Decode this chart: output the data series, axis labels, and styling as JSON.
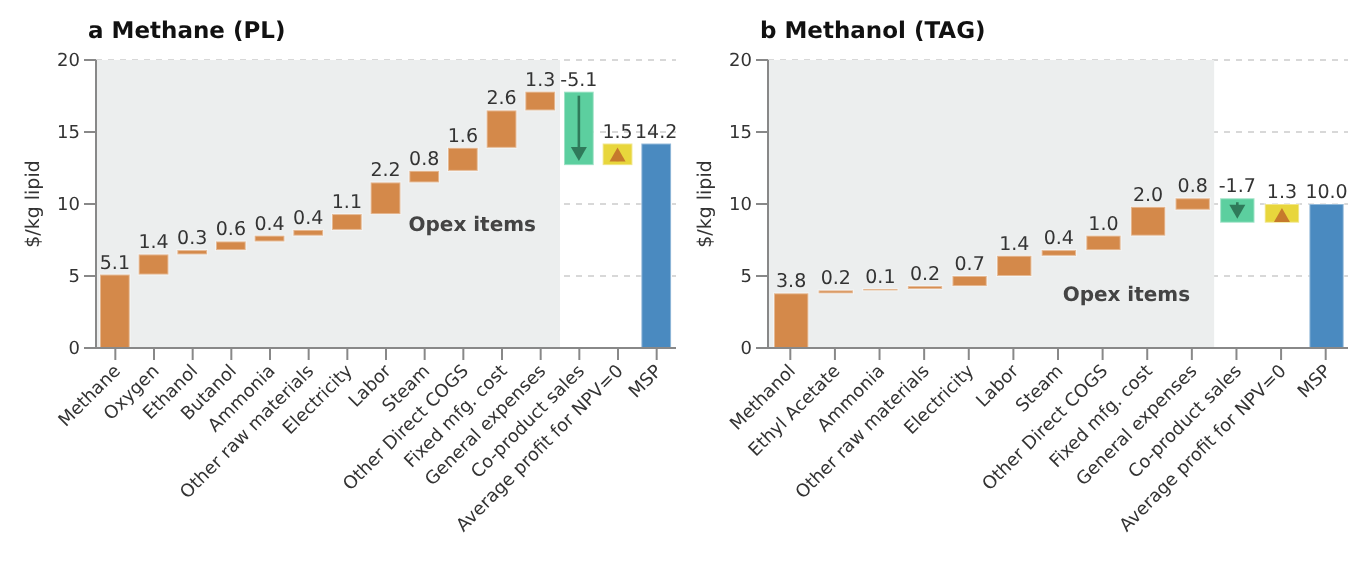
{
  "chart_data": [
    {
      "type": "bar",
      "title": "a Methane (PL)",
      "ylabel": "$/kg lipid",
      "categories": [
        "Methane",
        "Oxygen",
        "Ethanol",
        "Butanol",
        "Ammonia",
        "Other raw materials",
        "Electricity",
        "Labor",
        "Steam",
        "Other Direct COGS",
        "Fixed mfg. cost",
        "General expenses",
        "Co-product sales",
        "Average profit for NPV=0",
        "MSP"
      ],
      "values": [
        5.1,
        1.4,
        0.3,
        0.6,
        0.4,
        0.4,
        1.1,
        2.2,
        0.8,
        1.6,
        2.6,
        1.3,
        -5.1,
        1.5,
        14.2
      ],
      "base": [
        0,
        5.1,
        6.5,
        6.8,
        7.4,
        7.8,
        8.2,
        9.3,
        11.5,
        12.3,
        13.9,
        16.5,
        17.8,
        12.7,
        0
      ],
      "value_labels": [
        "5.1",
        "1.4",
        "0.3",
        "0.6",
        "0.4",
        "0.4",
        "1.1",
        "2.2",
        "0.8",
        "1.6",
        "2.6",
        "1.3",
        "-5.1",
        "1.5",
        "14.2"
      ],
      "colors": [
        "#d4894a",
        "#d4894a",
        "#d4894a",
        "#d4894a",
        "#d4894a",
        "#d4894a",
        "#d4894a",
        "#d4894a",
        "#d4894a",
        "#d4894a",
        "#d4894a",
        "#d4894a",
        "#5ccf9f",
        "#e8d63c",
        "#4a8ac0"
      ],
      "ylim": [
        0,
        20
      ],
      "yticks": [
        0,
        5,
        10,
        15,
        20
      ],
      "grid": "y",
      "bands": [
        {
          "axis": "x",
          "from": "Methane",
          "to": "General expenses",
          "label": "Opex items",
          "color": "#eceeee"
        }
      ]
    },
    {
      "type": "bar",
      "title": "b Methanol (TAG)",
      "ylabel": "$/kg lipid",
      "categories": [
        "Methanol",
        "Ethyl Acetate",
        "Ammonia",
        "Other raw materials",
        "Electricity",
        "Labor",
        "Steam",
        "Other Direct COGS",
        "Fixed mfg. cost",
        "General expenses",
        "Co-product sales",
        "Average profit for NPV=0",
        "MSP"
      ],
      "values": [
        3.8,
        0.2,
        0.1,
        0.2,
        0.7,
        1.4,
        0.4,
        1.0,
        2.0,
        0.8,
        -1.7,
        1.3,
        10.0
      ],
      "base": [
        0,
        3.8,
        4.0,
        4.1,
        4.3,
        5.0,
        6.4,
        6.8,
        7.8,
        9.6,
        10.4,
        8.7,
        0
      ],
      "value_labels": [
        "3.8",
        "0.2",
        "0.1",
        "0.2",
        "0.7",
        "1.4",
        "0.4",
        "1.0",
        "2.0",
        "0.8",
        "-1.7",
        "1.3",
        "10.0"
      ],
      "colors": [
        "#d4894a",
        "#d4894a",
        "#d4894a",
        "#d4894a",
        "#d4894a",
        "#d4894a",
        "#d4894a",
        "#d4894a",
        "#d4894a",
        "#d4894a",
        "#5ccf9f",
        "#e8d63c",
        "#4a8ac0"
      ],
      "ylim": [
        0,
        20
      ],
      "yticks": [
        0,
        5,
        10,
        15,
        20
      ],
      "grid": "y",
      "bands": [
        {
          "axis": "x",
          "from": "Methanol",
          "to": "General expenses",
          "label": "Opex items",
          "color": "#eceeee"
        }
      ]
    }
  ]
}
